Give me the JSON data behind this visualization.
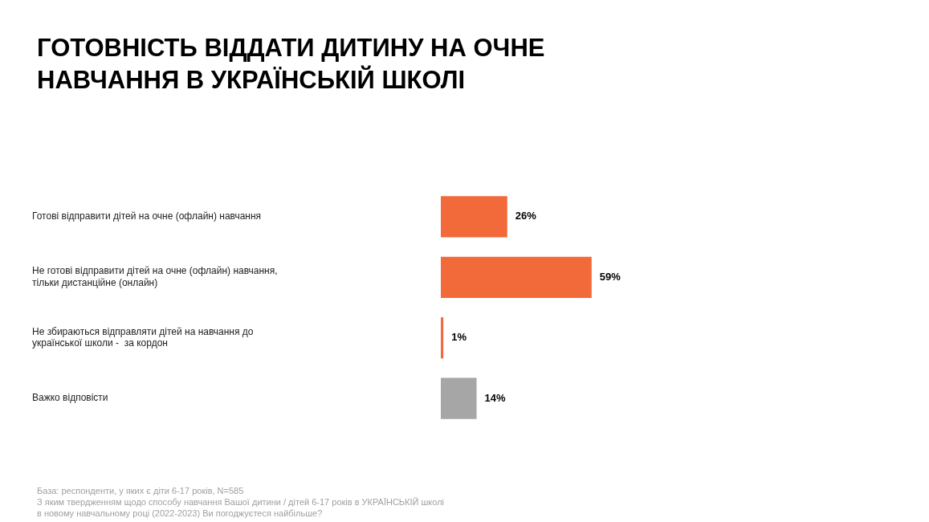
{
  "chart_data": {
    "type": "bar",
    "orientation": "horizontal",
    "title": "ГОТОВНІСТЬ ВІДДАТИ ДИТИНУ НА ОЧНЕ\nНАВЧАННЯ В УКРАЇНСЬКІЙ ШКОЛІ",
    "categories": [
      "Готові відправити дітей на очне (офлайн) навчання",
      "Не готові відправити дітей на очне (офлайн) навчання,\nтільки дистанційне (онлайн)",
      "Не збираються відправляти дітей на навчання до\nукраїнської школи -  за кордон",
      "Важко відповісти"
    ],
    "values": [
      26,
      59,
      1,
      14
    ],
    "colors": [
      "#f26a3a",
      "#f26a3a",
      "#f26a3a",
      "#a6a6a6"
    ],
    "value_labels": [
      "26%",
      "59%",
      "1%",
      "14%"
    ],
    "annotations": [
      "База: респонденти, у яких є діти 6-17 років, N=585",
      "З яким твердженням щодо способу навчання Вашої дитини / дітей 6-17 років в УКРАЇНСЬКІЙ школі",
      "в новому навчальному році (2022-2023) Ви погоджуєтеся найбільше?"
    ]
  }
}
